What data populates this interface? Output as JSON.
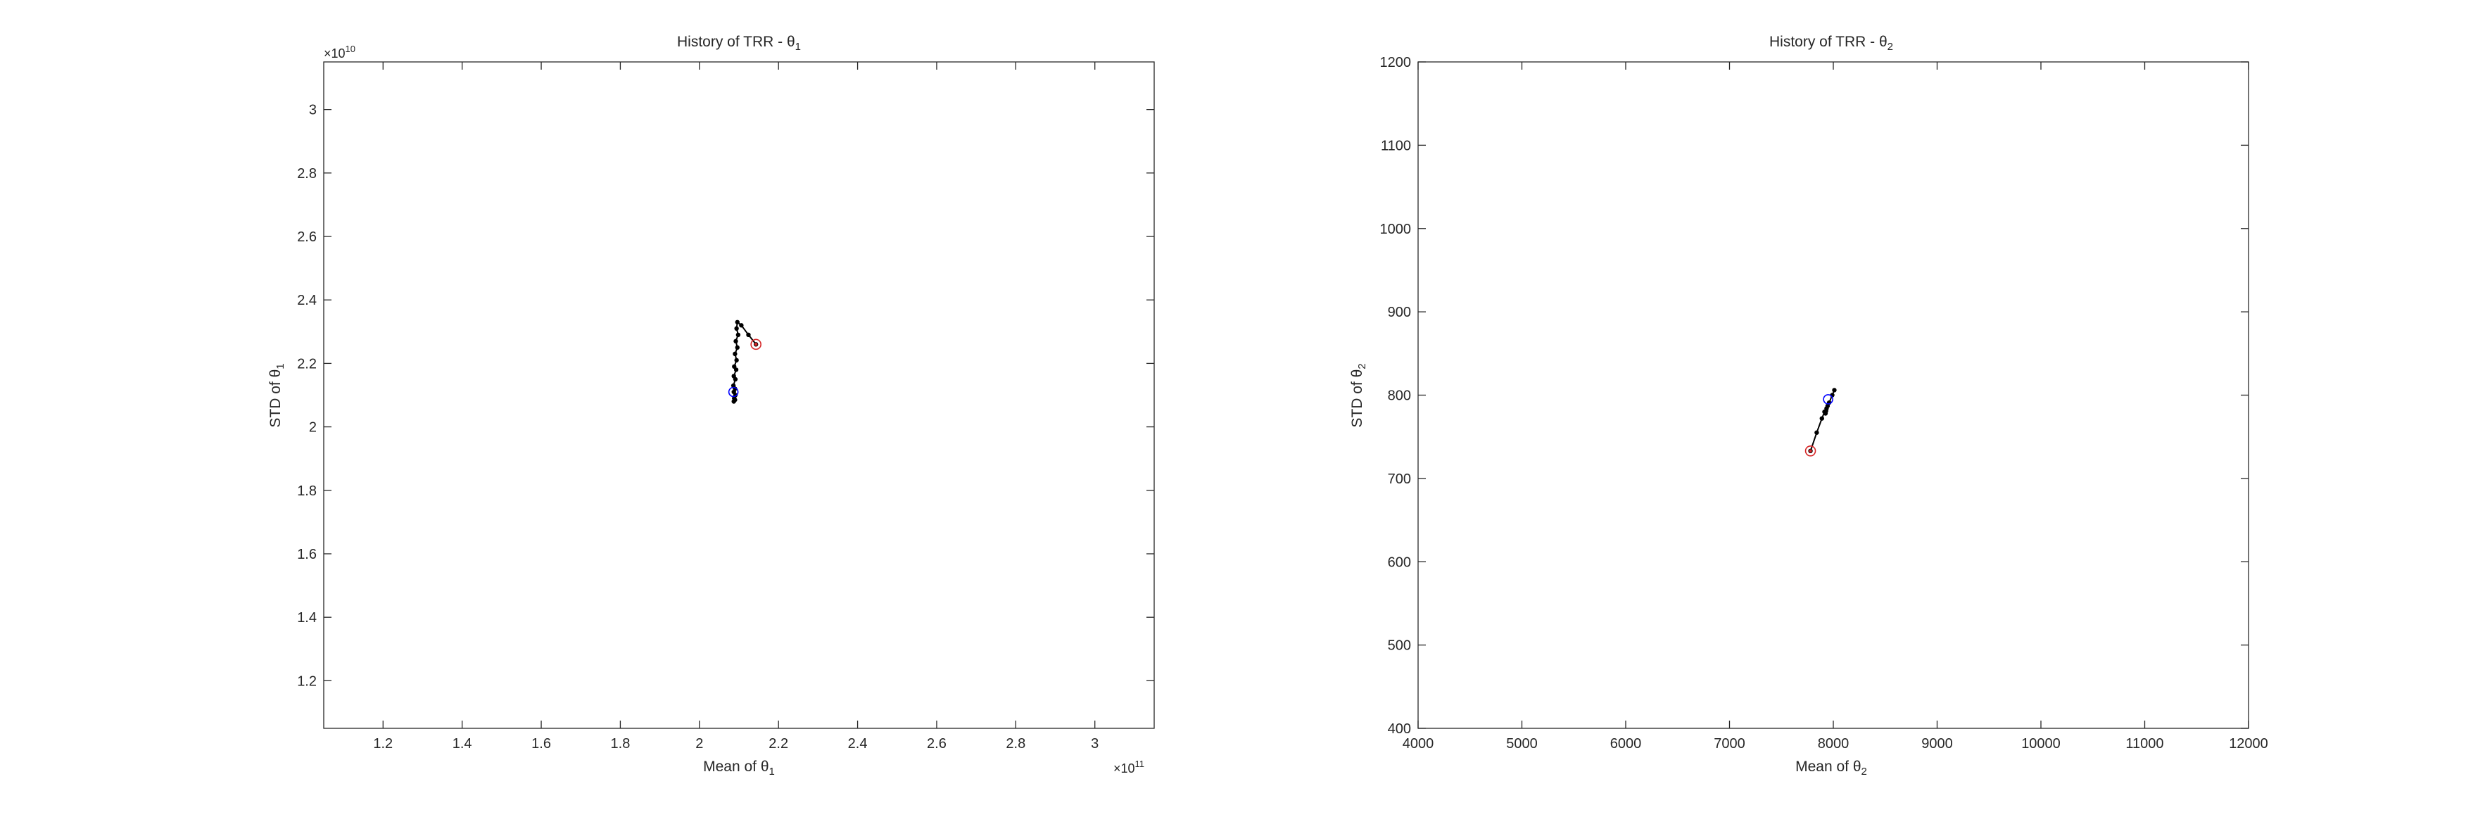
{
  "chart_data": [
    {
      "type": "line",
      "title": "History of TRR - θ",
      "title_sub": "1",
      "xlabel": "Mean of θ",
      "xlabel_sub": "1",
      "ylabel": "STD of θ",
      "ylabel_sub": "1",
      "xlim": [
        1.05,
        3.15
      ],
      "ylim": [
        1.05,
        3.15
      ],
      "xticks": [
        1.2,
        1.4,
        1.6,
        1.8,
        2,
        2.2,
        2.4,
        2.6,
        2.8,
        3
      ],
      "yticks": [
        1.2,
        1.4,
        1.6,
        1.8,
        2,
        2.2,
        2.4,
        2.6,
        2.8,
        3
      ],
      "xtick_labels": [
        "1.2",
        "1.4",
        "1.6",
        "1.8",
        "2",
        "2.2",
        "2.4",
        "2.6",
        "2.8",
        "3"
      ],
      "ytick_labels": [
        "1.2",
        "1.4",
        "1.6",
        "1.8",
        "2",
        "2.2",
        "2.4",
        "2.6",
        "2.8",
        "3"
      ],
      "x_exponent": {
        "base": "×10",
        "power": "11"
      },
      "y_exponent": {
        "base": "×10",
        "power": "10"
      },
      "grid": false,
      "series": [
        {
          "color": "#000000",
          "x": [
            2.143,
            2.124,
            2.106,
            2.096,
            2.094,
            2.098,
            2.092,
            2.096,
            2.09,
            2.094,
            2.088,
            2.093,
            2.087,
            2.091,
            2.086,
            2.09,
            2.087,
            2.091,
            2.088,
            2.09,
            2.087
          ],
          "y": [
            2.26,
            2.29,
            2.32,
            2.33,
            2.31,
            2.29,
            2.27,
            2.25,
            2.23,
            2.21,
            2.19,
            2.18,
            2.16,
            2.15,
            2.13,
            2.12,
            2.11,
            2.1,
            2.09,
            2.085,
            2.08
          ]
        }
      ],
      "start_marker": {
        "x": 2.143,
        "y": 2.26,
        "color": "#d62728"
      },
      "end_marker": {
        "x": 2.086,
        "y": 2.11,
        "color": "#0000ff"
      }
    },
    {
      "type": "line",
      "title": "History of TRR - θ",
      "title_sub": "2",
      "xlabel": "Mean of θ",
      "xlabel_sub": "2",
      "ylabel": "STD of θ",
      "ylabel_sub": "2",
      "xlim": [
        4000,
        12000
      ],
      "ylim": [
        400,
        1200
      ],
      "xticks": [
        4000,
        5000,
        6000,
        7000,
        8000,
        9000,
        10000,
        11000,
        12000
      ],
      "yticks": [
        400,
        500,
        600,
        700,
        800,
        900,
        1000,
        1100,
        1200
      ],
      "xtick_labels": [
        "4000",
        "5000",
        "6000",
        "7000",
        "8000",
        "9000",
        "10000",
        "11000",
        "12000"
      ],
      "ytick_labels": [
        "400",
        "500",
        "600",
        "700",
        "800",
        "900",
        "1000",
        "1100",
        "1200"
      ],
      "grid": false,
      "series": [
        {
          "color": "#000000",
          "x": [
            7780,
            7840,
            7890,
            7915,
            7925,
            7935,
            7930,
            7945,
            7960,
            7990,
            8010
          ],
          "y": [
            733,
            755,
            772,
            780,
            778,
            784,
            781,
            787,
            791,
            800,
            806
          ]
        }
      ],
      "start_marker": {
        "x": 7780,
        "y": 733,
        "color": "#d62728"
      },
      "end_marker": {
        "x": 7950,
        "y": 795,
        "color": "#0000ff"
      }
    }
  ]
}
